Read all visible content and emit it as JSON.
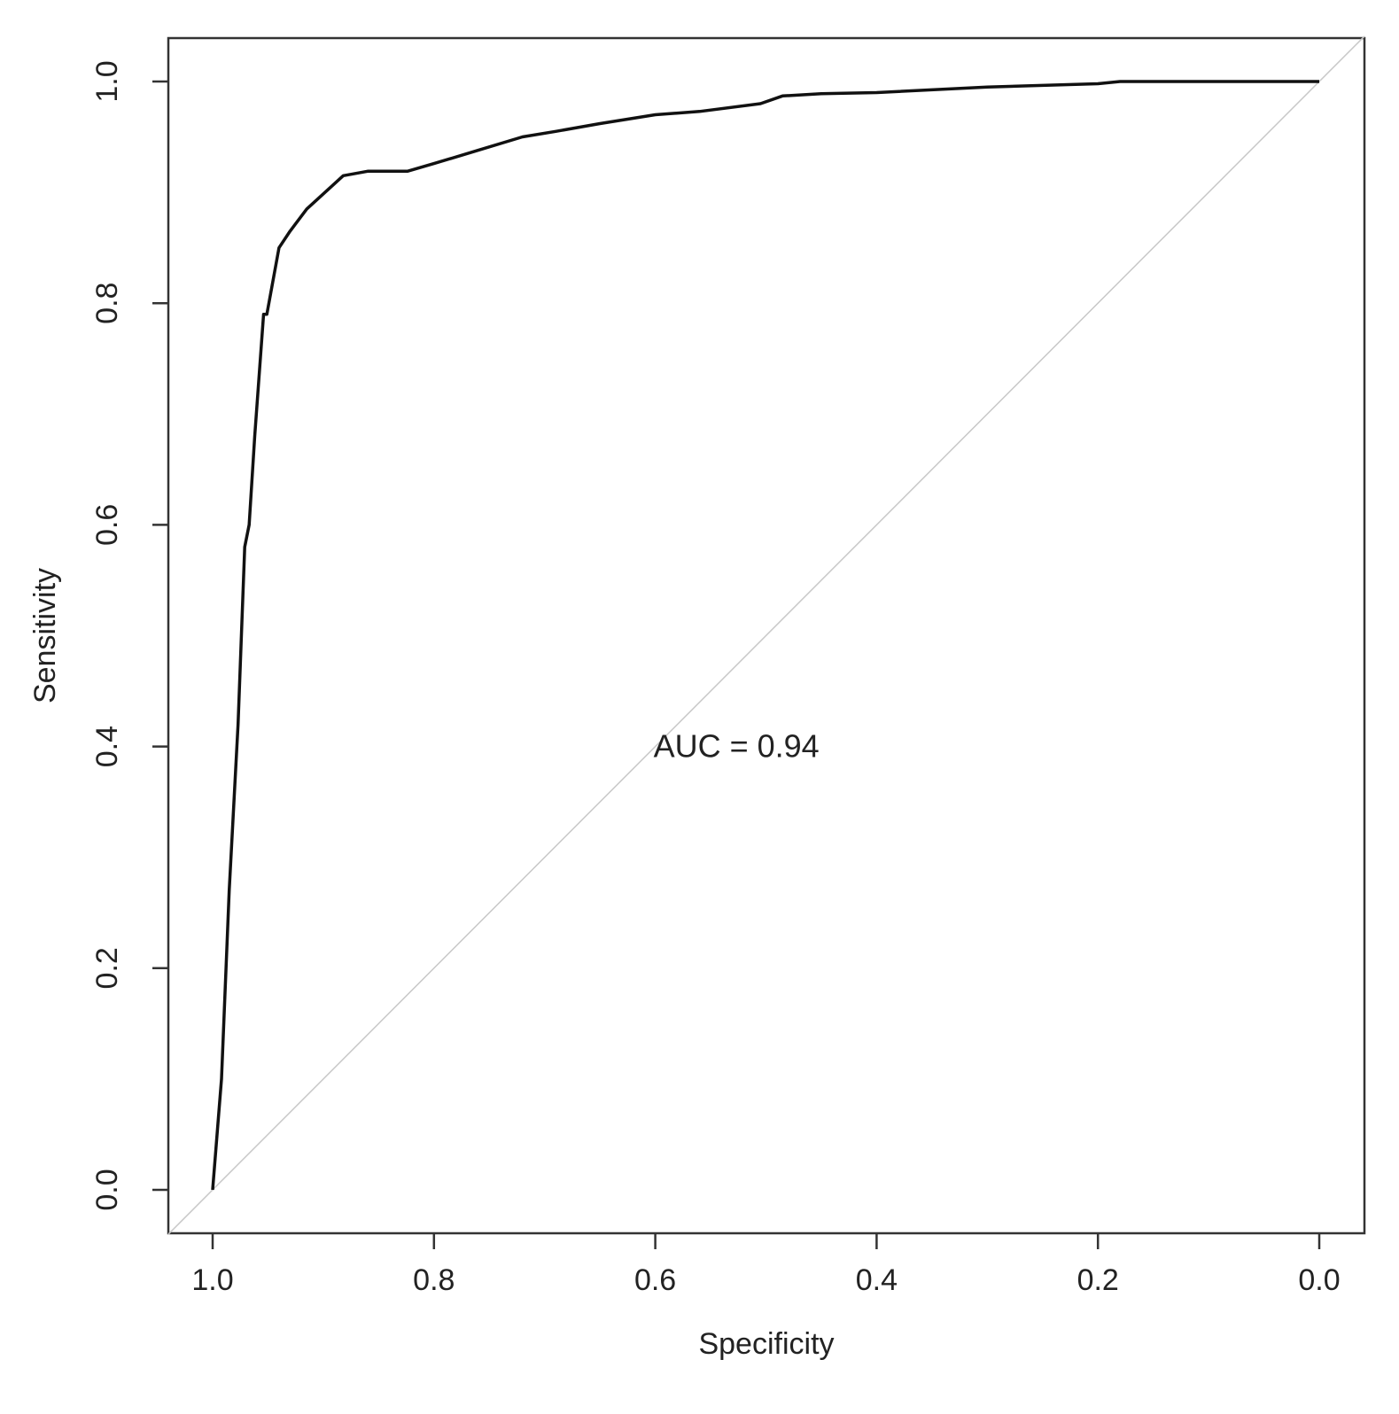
{
  "chart_data": {
    "type": "line",
    "xlabel": "Specificity",
    "ylabel": "Sensitivity",
    "xlim": [
      1.0,
      0.0
    ],
    "ylim": [
      0.0,
      1.0
    ],
    "x_reversed": true,
    "grid": false,
    "legend": "none",
    "xticks": [
      "1.0",
      "0.8",
      "0.6",
      "0.4",
      "0.2",
      "0.0"
    ],
    "yticks": [
      "0.0",
      "0.2",
      "0.4",
      "0.6",
      "0.8",
      "1.0"
    ],
    "reference_line": {
      "from": [
        1.0,
        0.0
      ],
      "to": [
        0.0,
        1.0
      ],
      "color": "#c8c8c8"
    },
    "annotation": {
      "text": "AUC = 0.94",
      "x": 0.6,
      "y": 0.4
    },
    "series": [
      {
        "color": "#111111",
        "x": [
          1.0,
          0.992,
          0.985,
          0.977,
          0.971,
          0.967,
          0.962,
          0.954,
          0.951,
          0.94,
          0.93,
          0.915,
          0.882,
          0.86,
          0.824,
          0.8,
          0.76,
          0.72,
          0.69,
          0.65,
          0.6,
          0.56,
          0.505,
          0.485,
          0.45,
          0.4,
          0.3,
          0.2,
          0.18,
          0.1,
          0.0
        ],
        "y": [
          0.0,
          0.1,
          0.27,
          0.42,
          0.58,
          0.6,
          0.68,
          0.79,
          0.79,
          0.85,
          0.865,
          0.885,
          0.915,
          0.919,
          0.919,
          0.926,
          0.938,
          0.95,
          0.955,
          0.962,
          0.97,
          0.973,
          0.98,
          0.987,
          0.989,
          0.99,
          0.995,
          0.998,
          1.0,
          1.0,
          1.0
        ]
      }
    ]
  }
}
